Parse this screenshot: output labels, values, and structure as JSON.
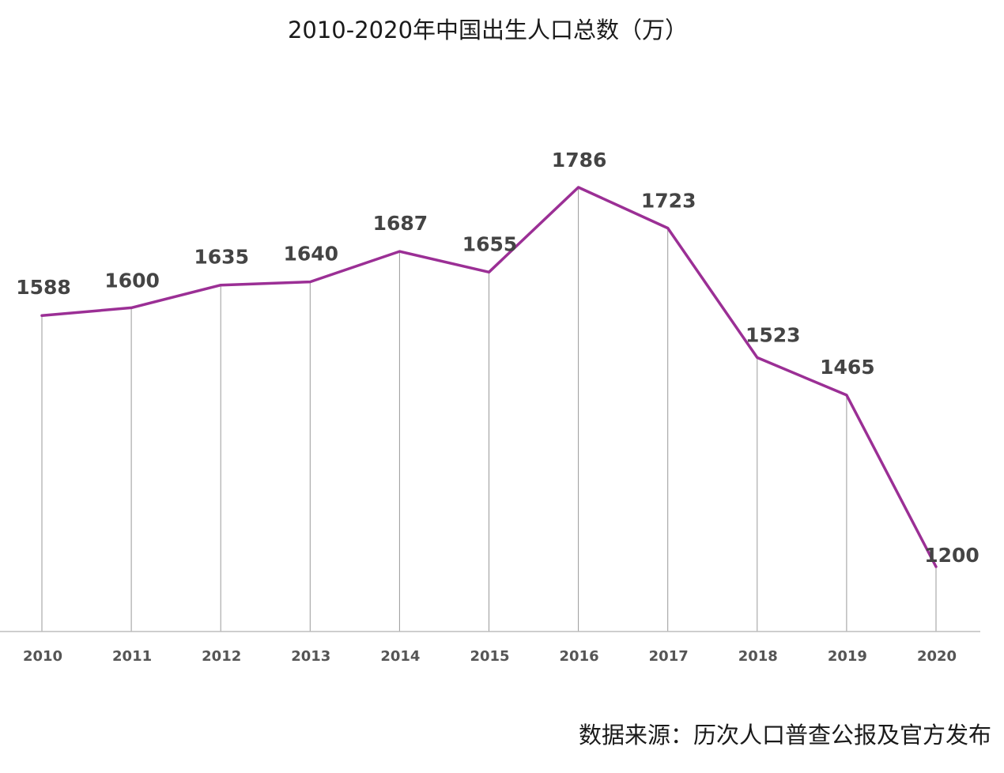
{
  "chart_data": {
    "type": "line",
    "title": "2010-2020年中国出生人口总数（万）",
    "source": "数据来源：历次人口普查公报及官方发布",
    "categories": [
      "2010",
      "2011",
      "2012",
      "2013",
      "2014",
      "2015",
      "2016",
      "2017",
      "2018",
      "2019",
      "2020"
    ],
    "values": [
      1588,
      1600,
      1635,
      1640,
      1687,
      1655,
      1786,
      1723,
      1523,
      1465,
      1200
    ],
    "xlabel": "",
    "ylabel": "",
    "ylim": [
      1000,
      1800
    ],
    "grid": false,
    "legend": "none",
    "line_color": "#9b2f95"
  }
}
